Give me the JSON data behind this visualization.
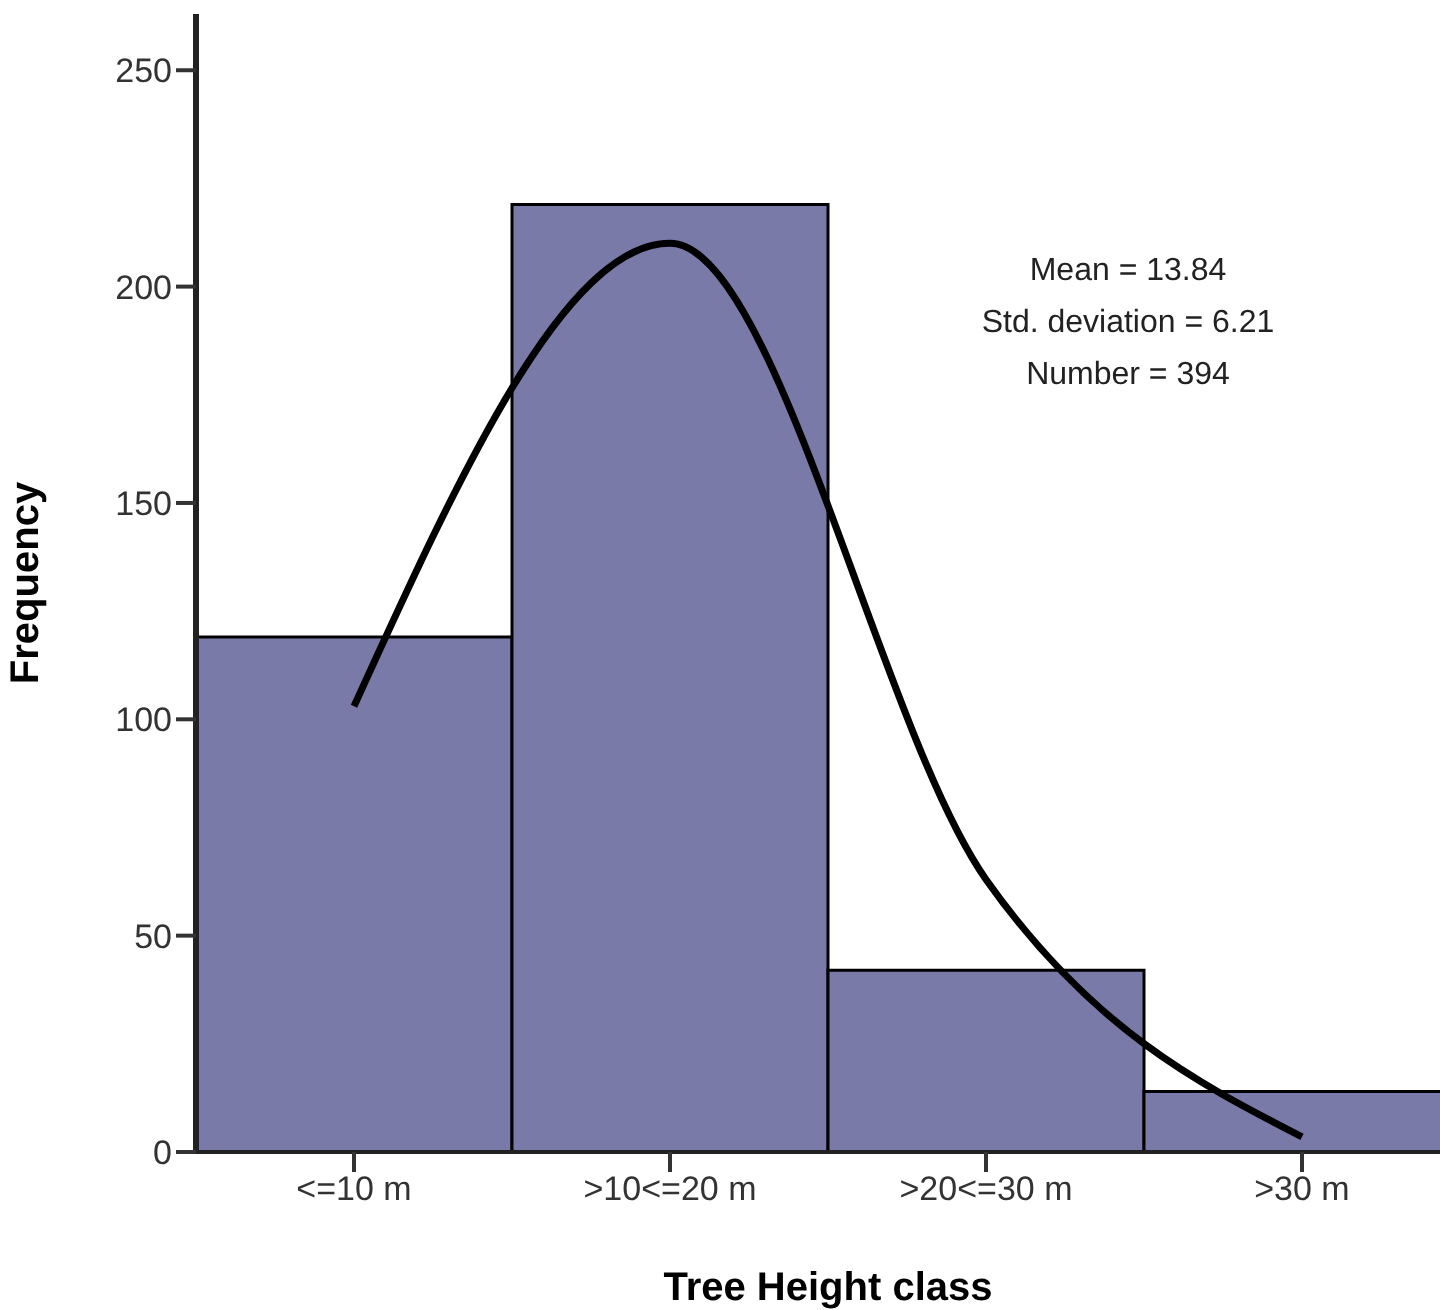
{
  "chart_data": {
    "type": "bar",
    "xlabel": "Tree Height class",
    "ylabel": "Frequency",
    "categories": [
      "<=10 m",
      ">10<=20 m",
      ">20<=30 m",
      ">30 m"
    ],
    "series": [
      {
        "color": "#7a7aa8",
        "values": [
          119,
          219,
          42,
          14
        ]
      },
      {
        "type": "line",
        "color": "#000000",
        "values": [
          103,
          210,
          63,
          3.5
        ]
      }
    ],
    "ylim": [
      0,
      263
    ],
    "yticks": [
      0,
      50,
      100,
      150,
      200,
      250
    ],
    "annotations": [
      "Mean = 13.84",
      "Std. deviation = 6.21",
      "Number = 394"
    ],
    "grid": false,
    "legend": false,
    "marker": "none",
    "line_style": "solid"
  }
}
